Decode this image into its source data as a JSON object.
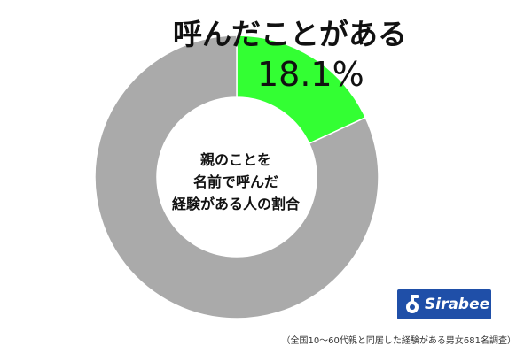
{
  "chart_data": {
    "type": "pie",
    "variant": "donut",
    "slices": [
      {
        "label": "呼んだことがある",
        "value": 18.1,
        "value_label": "18.1%",
        "color": "#33ff33"
      },
      {
        "label": "",
        "value": 81.9,
        "color": "#aaaaaa"
      }
    ],
    "center_text": [
      "親のことを",
      "名前で呼んだ",
      "経験がある人の割合"
    ],
    "start_angle": "12 o'clock",
    "direction": "clockwise",
    "separator_color": "#ffffff"
  },
  "logo": {
    "text": "Sirabee",
    "color": "#1f4fa8"
  },
  "footnote": "（全国10〜60代親と同居した経験がある男女681名調査）"
}
